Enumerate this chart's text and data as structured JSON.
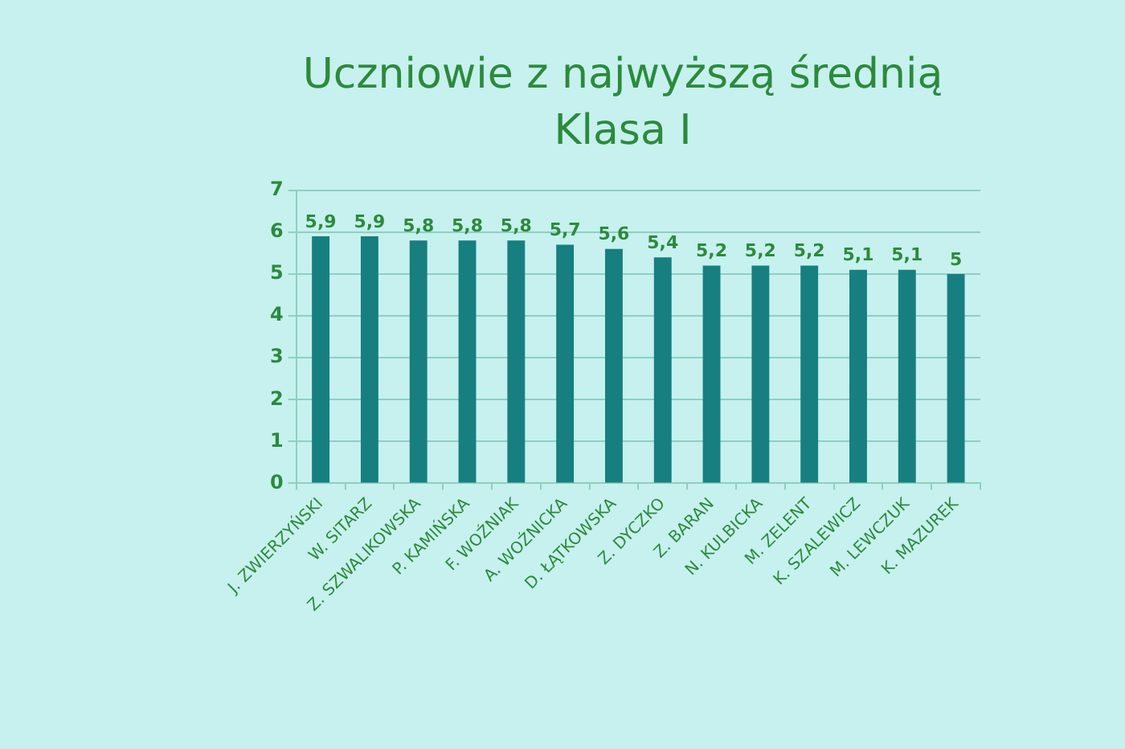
{
  "chart_data": {
    "type": "bar",
    "title": "Uczniowie z najwyższą średnią",
    "subtitle": "Klasa I",
    "categories": [
      "J. ZWIERZYŃSKI",
      "W. SITARZ",
      "Z. SZWALIKOWSKA",
      "P. KAMIŃSKA",
      "F. WOŹNIAK",
      "A. WOŹNICKA",
      "D. ŁĄTKOWSKA",
      "Z. DYCZKO",
      "Z. BARAN",
      "N. KULBICKA",
      "M. ZELENT",
      "K. SZALEWICZ",
      "M. LEWCZUK",
      "K. MAZUREK"
    ],
    "values": [
      5.9,
      5.9,
      5.8,
      5.8,
      5.8,
      5.7,
      5.6,
      5.4,
      5.2,
      5.2,
      5.2,
      5.1,
      5.1,
      5
    ],
    "value_labels": [
      "5,9",
      "5,9",
      "5,8",
      "5,8",
      "5,8",
      "5,7",
      "5,6",
      "5,4",
      "5,2",
      "5,2",
      "5,2",
      "5,1",
      "5,1",
      "5"
    ],
    "color": "#177f80",
    "ylim": [
      0,
      7
    ],
    "yticks": [
      0,
      1,
      2,
      3,
      4,
      5,
      6,
      7
    ],
    "grid": "y"
  }
}
